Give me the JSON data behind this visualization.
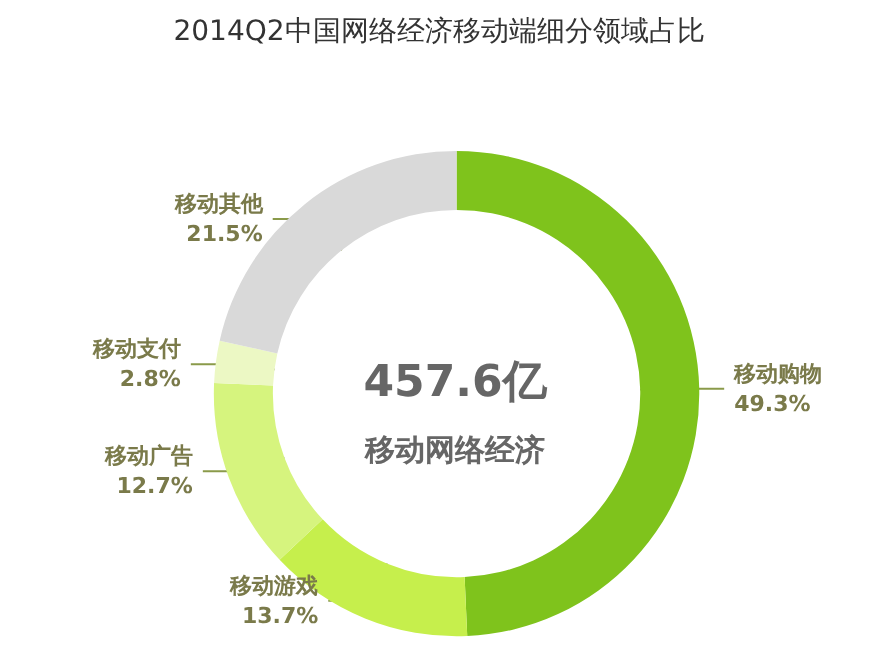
{
  "chart_data": {
    "type": "donut",
    "title": "2014Q2中国网络经济移动端细分领域占比",
    "categories": [
      "移动购物",
      "移动游戏",
      "移动广告",
      "移动支付",
      "移动其他"
    ],
    "values": [
      49.3,
      13.7,
      12.7,
      2.8,
      21.5
    ],
    "value_labels": [
      "49.3%",
      "13.7%",
      "12.7%",
      "2.8%",
      "21.5%"
    ],
    "colors": [
      "#7fc31c",
      "#c6ef4c",
      "#d6f47e",
      "#ecf8c4",
      "#d9d9d9"
    ],
    "annotations": [
      "457.6亿",
      "移动网络经济"
    ],
    "legend": false
  }
}
